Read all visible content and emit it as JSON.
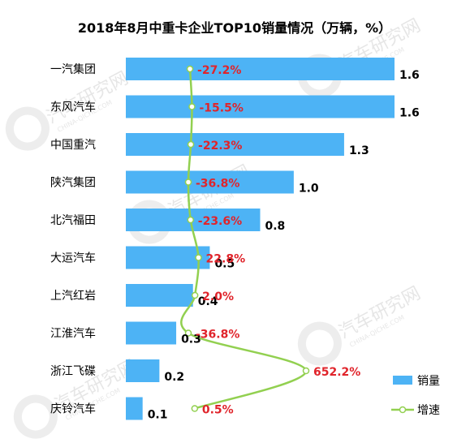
{
  "chart_data": {
    "type": "bar",
    "orientation": "horizontal",
    "title": "2018年8月中重卡企业TOP10销量情况（万辆，%）",
    "categories": [
      "一汽集团",
      "东风汽车",
      "中国重汽",
      "陕汽集团",
      "北汽福田",
      "大运汽车",
      "上汽红岩",
      "江淮汽车",
      "浙江飞碟",
      "庆铃汽车"
    ],
    "series": [
      {
        "name": "销量",
        "type": "bar",
        "color": "#4db3f5",
        "values": [
          1.6,
          1.6,
          1.3,
          1.0,
          0.8,
          0.5,
          0.4,
          0.3,
          0.2,
          0.1
        ],
        "labels": [
          "1.6",
          "1.6",
          "1.3",
          "1.0",
          "0.8",
          "0.5",
          "0.4",
          "0.3",
          "0.2",
          "0.1"
        ]
      },
      {
        "name": "增速",
        "type": "line",
        "color": "#92d050",
        "values": [
          -27.2,
          -15.5,
          -22.3,
          -36.8,
          -23.6,
          22.8,
          2.0,
          -36.8,
          652.2,
          0.5
        ],
        "labels": [
          "-27.2%",
          "-15.5%",
          "-22.3%",
          "-36.8%",
          "-23.6%",
          "22.8%",
          "2.0%",
          "-36.8%",
          "652.2%",
          "0.5%"
        ]
      }
    ],
    "xlim_bar": [
      0,
      1.6
    ],
    "xlim_line": [
      -36.8,
      652.2
    ],
    "grid": false,
    "legend_position": "bottom-right",
    "label_color": "#e0242b"
  },
  "watermark": {
    "text": "汽车研究网",
    "subtext": "CHINA-QICHE.COM"
  }
}
